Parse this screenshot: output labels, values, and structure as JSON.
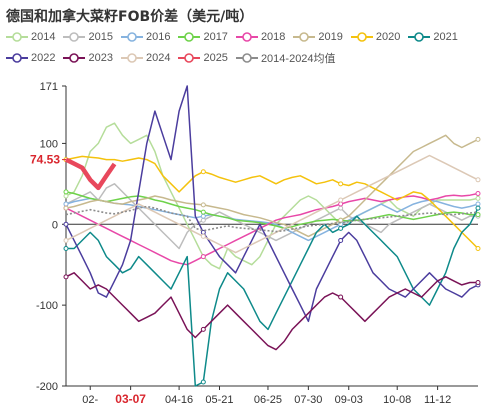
{
  "title": "德国和加拿大菜籽FOB价差（美元/吨）",
  "legend": [
    {
      "name": "2014",
      "color": "#b5dd9a"
    },
    {
      "name": "2015",
      "color": "#bdbdbd"
    },
    {
      "name": "2016",
      "color": "#86b3df"
    },
    {
      "name": "2017",
      "color": "#6ed24a"
    },
    {
      "name": "2018",
      "color": "#e848a8"
    },
    {
      "name": "2019",
      "color": "#c7b98e"
    },
    {
      "name": "2020",
      "color": "#f4c20d"
    },
    {
      "name": "2021",
      "color": "#0e8a8a"
    },
    {
      "name": "2022",
      "color": "#4b3d9e"
    },
    {
      "name": "2023",
      "color": "#7a1357"
    },
    {
      "name": "2024",
      "color": "#dcc8b5"
    },
    {
      "name": "2025",
      "color": "#e8485c"
    },
    {
      "name": "2014-2024均值",
      "color": "#8c8c8c"
    }
  ],
  "chart_data": {
    "type": "line",
    "title": "德国和加拿大菜籽FOB价差（美元/吨）",
    "xlabel": "",
    "ylabel": "",
    "ylim": [
      -200,
      171
    ],
    "y_ticks": [
      "171",
      "100",
      "0",
      "-100",
      "-200"
    ],
    "x_ticks": [
      "02-",
      "03-07",
      "04-16",
      "05-21",
      "06-25",
      "07-30",
      "09-03",
      "10-08",
      "11-12"
    ],
    "x_highlight": "03-07",
    "x_count": 52,
    "latest_label": "74.53",
    "grid": false,
    "legend_position": "top",
    "series": [
      {
        "name": "2014",
        "color": "#b5dd9a",
        "values": [
          35,
          40,
          60,
          90,
          100,
          120,
          125,
          110,
          100,
          105,
          110,
          90,
          60,
          40,
          20,
          0,
          -20,
          -40,
          -50,
          -55,
          -30,
          -40,
          -45,
          -50,
          -40,
          -20,
          0,
          10,
          20,
          30,
          35,
          30,
          20,
          10,
          0,
          5,
          10,
          15,
          20,
          25,
          30,
          20,
          15,
          10,
          20,
          25,
          30,
          30,
          30,
          30,
          30,
          32
        ]
      },
      {
        "name": "2015",
        "color": "#bdbdbd",
        "values": [
          25,
          30,
          35,
          40,
          30,
          45,
          50,
          40,
          30,
          20,
          10,
          0,
          -10,
          -20,
          -30,
          -10,
          0,
          5,
          10,
          15,
          10,
          5,
          0,
          -5,
          -10,
          -15,
          -20,
          -15,
          -10,
          -5,
          0,
          5,
          10,
          15,
          20,
          10,
          5,
          0,
          -5,
          -10,
          0,
          5,
          10,
          15,
          20,
          25,
          20,
          15,
          10,
          5,
          10,
          10
        ]
      },
      {
        "name": "2016",
        "color": "#86b3df",
        "values": [
          25,
          28,
          30,
          32,
          30,
          28,
          26,
          25,
          24,
          22,
          20,
          18,
          16,
          14,
          12,
          10,
          8,
          10,
          12,
          10,
          8,
          6,
          5,
          4,
          3,
          2,
          0,
          -5,
          -10,
          -15,
          -20,
          -15,
          -10,
          -5,
          0,
          5,
          10,
          15,
          20,
          25,
          20,
          15,
          20,
          25,
          28,
          30,
          28,
          25,
          22,
          20,
          22,
          25
        ]
      },
      {
        "name": "2017",
        "color": "#6ed24a",
        "values": [
          40,
          38,
          35,
          32,
          30,
          28,
          30,
          32,
          34,
          35,
          33,
          30,
          28,
          25,
          22,
          20,
          18,
          15,
          12,
          10,
          8,
          5,
          4,
          3,
          2,
          0,
          -2,
          -5,
          -3,
          0,
          2,
          4,
          5,
          6,
          5,
          4,
          5,
          6,
          8,
          10,
          12,
          10,
          8,
          6,
          8,
          10,
          12,
          14,
          15,
          14,
          12,
          12
        ]
      },
      {
        "name": "2018",
        "color": "#e848a8",
        "values": [
          20,
          15,
          10,
          5,
          0,
          -5,
          -10,
          -15,
          -20,
          -25,
          -30,
          -35,
          -40,
          -45,
          -48,
          -50,
          -45,
          -40,
          -35,
          -30,
          -25,
          -20,
          -15,
          -10,
          -5,
          0,
          5,
          8,
          10,
          12,
          15,
          18,
          20,
          22,
          25,
          28,
          30,
          32,
          30,
          28,
          30,
          32,
          34,
          35,
          33,
          30,
          32,
          35,
          36,
          35,
          36,
          38
        ]
      },
      {
        "name": "2019",
        "color": "#c7b98e",
        "values": [
          20,
          22,
          25,
          28,
          30,
          28,
          26,
          25,
          28,
          30,
          32,
          35,
          33,
          30,
          28,
          26,
          25,
          24,
          22,
          20,
          18,
          15,
          12,
          10,
          8,
          5,
          2,
          0,
          -5,
          -10,
          -15,
          -10,
          -5,
          0,
          5,
          10,
          20,
          30,
          40,
          50,
          60,
          70,
          80,
          90,
          95,
          100,
          105,
          110,
          100,
          95,
          100,
          105
        ]
      },
      {
        "name": "2020",
        "color": "#f4c20d",
        "values": [
          80,
          82,
          84,
          83,
          82,
          80,
          80,
          78,
          80,
          82,
          80,
          75,
          60,
          50,
          40,
          50,
          60,
          65,
          62,
          58,
          55,
          52,
          55,
          58,
          60,
          55,
          50,
          55,
          58,
          60,
          55,
          50,
          52,
          55,
          50,
          48,
          52,
          50,
          45,
          40,
          35,
          30,
          35,
          40,
          38,
          30,
          20,
          10,
          0,
          -10,
          -20,
          -30
        ]
      },
      {
        "name": "2021",
        "color": "#0e8a8a",
        "values": [
          -30,
          -30,
          -20,
          -10,
          -20,
          -40,
          -50,
          -60,
          -55,
          -40,
          -50,
          -60,
          -70,
          -80,
          -60,
          -40,
          -200,
          -195,
          -120,
          -80,
          -60,
          -70,
          -80,
          -100,
          -120,
          -130,
          -110,
          -90,
          -70,
          -50,
          -30,
          -10,
          0,
          -10,
          -5,
          0,
          10,
          0,
          -10,
          -20,
          -30,
          -40,
          -60,
          -80,
          -90,
          -100,
          -80,
          -60,
          -30,
          -10,
          0,
          20
        ]
      },
      {
        "name": "2022",
        "color": "#4b3d9e",
        "values": [
          0,
          -20,
          -40,
          -60,
          -85,
          -90,
          -70,
          -50,
          -20,
          40,
          100,
          140,
          110,
          80,
          140,
          171,
          10,
          -10,
          -25,
          -40,
          -50,
          -60,
          -40,
          -20,
          0,
          -20,
          -40,
          -60,
          -80,
          -100,
          -120,
          -80,
          -60,
          -40,
          -20,
          -10,
          -20,
          -40,
          -60,
          -70,
          -80,
          -85,
          -90,
          -80,
          -70,
          -60,
          -70,
          -80,
          -85,
          -90,
          -80,
          -75
        ]
      },
      {
        "name": "2023",
        "color": "#7a1357",
        "values": [
          -65,
          -60,
          -70,
          -80,
          -75,
          -80,
          -90,
          -100,
          -110,
          -120,
          -115,
          -110,
          -100,
          -90,
          -110,
          -130,
          -140,
          -130,
          -120,
          -110,
          -100,
          -110,
          -120,
          -130,
          -140,
          -150,
          -155,
          -145,
          -130,
          -120,
          -110,
          -100,
          -90,
          -85,
          -90,
          -100,
          -110,
          -120,
          -110,
          -100,
          -90,
          -85,
          -80,
          -85,
          -90,
          -80,
          -70,
          -65,
          -70,
          -75,
          -72,
          -72
        ]
      },
      {
        "name": "2024",
        "color": "#dcc8b5",
        "values": [
          -20,
          -15,
          -10,
          -5,
          0,
          5,
          10,
          15,
          20,
          25,
          20,
          15,
          10,
          5,
          0,
          -5,
          -10,
          -15,
          -20,
          -25,
          -30,
          -35,
          -30,
          -25,
          -20,
          -15,
          -10,
          -5,
          0,
          5,
          10,
          15,
          20,
          25,
          30,
          35,
          40,
          45,
          50,
          55,
          60,
          65,
          70,
          75,
          80,
          85,
          80,
          75,
          70,
          65,
          60,
          55
        ]
      },
      {
        "name": "2025",
        "color": "#e8485c",
        "values": [
          80,
          75,
          70,
          55,
          45,
          60,
          74.53
        ]
      },
      {
        "name": "2014-2024均值",
        "color": "#8c8c8c",
        "values": [
          12,
          14,
          16,
          18,
          16,
          14,
          13,
          15,
          17,
          20,
          22,
          20,
          17,
          14,
          12,
          10,
          -5,
          -8,
          -6,
          -4,
          -2,
          -4,
          -5,
          -6,
          -7,
          -8,
          -9,
          -8,
          -6,
          -4,
          -2,
          -1,
          0,
          1,
          2,
          3,
          5,
          6,
          7,
          8,
          9,
          10,
          11,
          12,
          13,
          14,
          13,
          12,
          12,
          13,
          14,
          15
        ]
      }
    ]
  }
}
